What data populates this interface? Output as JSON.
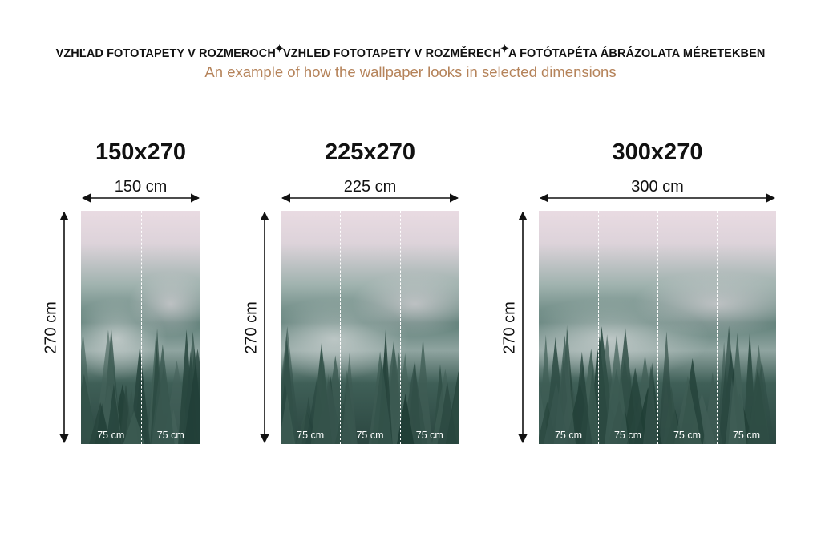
{
  "header": {
    "languages": [
      "VZHĽAD FOTOTAPETY V ROZMEROCH",
      "VZHLED FOTOTAPETY V ROZMĚRECH",
      "A FOTÓTAPÉTA ÁBRÁZOLATA MÉRETEKBEN"
    ],
    "separator_icon": "sparkle-icon",
    "subtitle": "An example of how the wallpaper looks in selected dimensions"
  },
  "colors": {
    "subtitle": "#b5835a",
    "sky": "#e9dbe2",
    "forest": "#2b4640"
  },
  "panels": [
    {
      "title": "150x270",
      "width_label": "150 cm",
      "height_label": "270 cm",
      "segments": [
        "75 cm",
        "75 cm"
      ]
    },
    {
      "title": "225x270",
      "width_label": "225 cm",
      "height_label": "270 cm",
      "segments": [
        "75 cm",
        "75 cm",
        "75 cm"
      ]
    },
    {
      "title": "300x270",
      "width_label": "300 cm",
      "height_label": "270 cm",
      "segments": [
        "75 cm",
        "75 cm",
        "75 cm",
        "75 cm"
      ]
    }
  ]
}
